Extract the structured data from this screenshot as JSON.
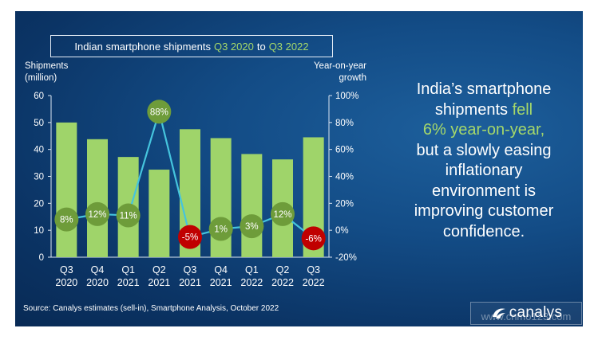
{
  "title": {
    "prefix": "Indian smartphone shipments",
    "from": "Q3 2020",
    "connector": "to",
    "to": "Q3 2022"
  },
  "left_axis_title": [
    "Shipments",
    "(million)"
  ],
  "right_axis_title": [
    "Year-on-year",
    "growth"
  ],
  "headline": {
    "line1": "India’s smartphone",
    "line2a": "shipments ",
    "line2b": "fell",
    "line3": "6% year-on-year,",
    "line4": "but a slowly easing",
    "line5": "inflationary",
    "line6": "environment is",
    "line7": "improving customer",
    "line8": "confidence."
  },
  "source": "Source: Canalys estimates (sell-in), Smartphone Analysis, October 2022",
  "logo_text": "canalys",
  "watermark": "www.cnmo123.com",
  "colors": {
    "bar": "#9fd46a",
    "line": "#45c4dd",
    "bubble_positive": "#6e9c3a",
    "bubble_negative": "#c00000",
    "highlight": "#a5d86a"
  },
  "chart_data": {
    "type": "bar",
    "categories": [
      [
        "Q3",
        "2020"
      ],
      [
        "Q4",
        "2020"
      ],
      [
        "Q1",
        "2021"
      ],
      [
        "Q2",
        "2021"
      ],
      [
        "Q3",
        "2021"
      ],
      [
        "Q4",
        "2021"
      ],
      [
        "Q1",
        "2022"
      ],
      [
        "Q2",
        "2022"
      ],
      [
        "Q3",
        "2022"
      ]
    ],
    "series": [
      {
        "values": [
          50,
          43.8,
          37.2,
          32.5,
          47.5,
          44.2,
          38.3,
          36.3,
          44.5
        ]
      },
      {
        "values": [
          8,
          12,
          11,
          88,
          -5,
          1,
          3,
          12,
          -6
        ]
      }
    ],
    "point_labels": [
      "8%",
      "12%",
      "11%",
      "88%",
      "-5%",
      "1%",
      "3%",
      "12%",
      "-6%"
    ],
    "ylabel": "Shipments (million)",
    "y2label": "Year-on-year growth",
    "ylim": [
      0,
      60
    ],
    "y2lim": [
      -20,
      100
    ],
    "yticks": [
      "0",
      "10",
      "20",
      "30",
      "40",
      "50",
      "60"
    ],
    "y2ticks": [
      "-20%",
      "0%",
      "20%",
      "40%",
      "60%",
      "80%",
      "100%"
    ],
    "grid": false
  }
}
